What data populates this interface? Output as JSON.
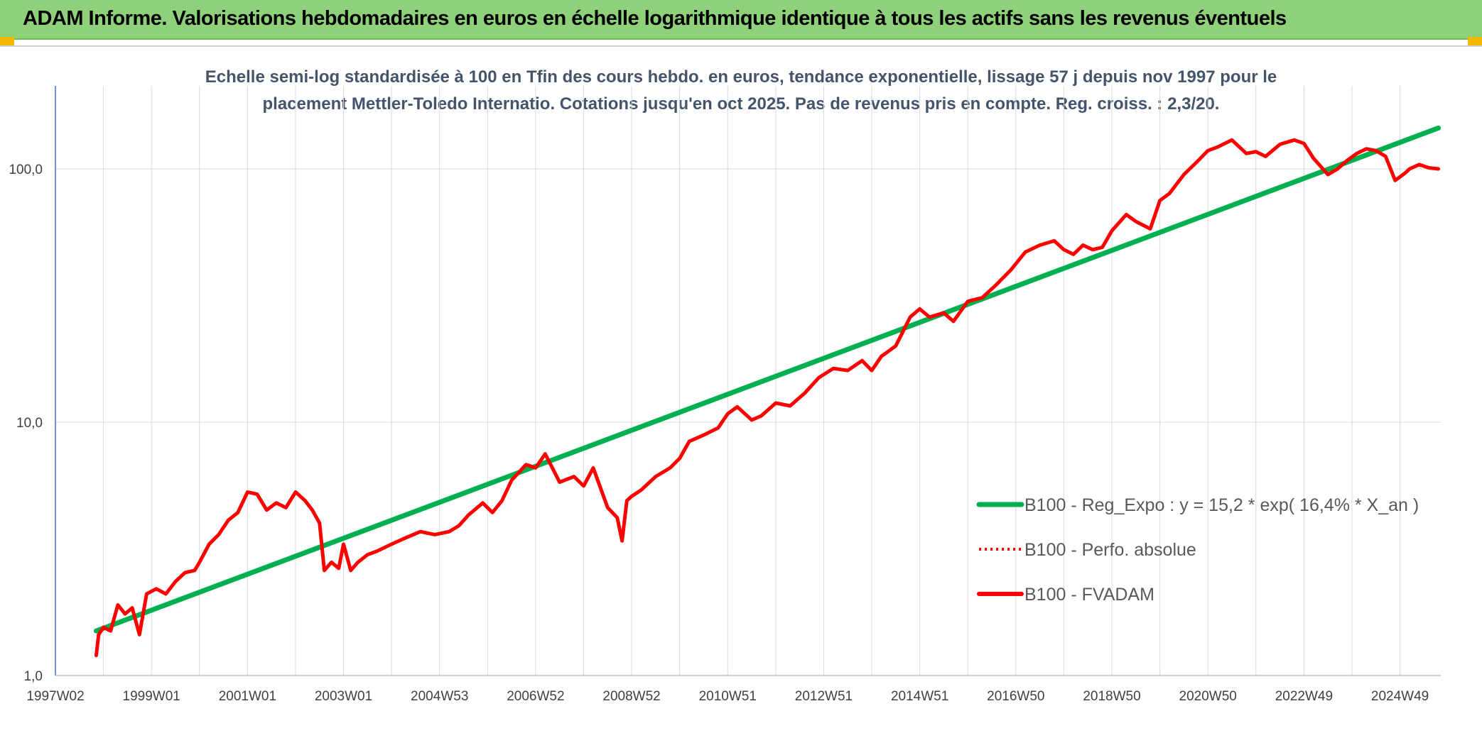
{
  "header": {
    "title": "ADAM Informe. Valorisations hebdomadaires en euros en échelle logarithmique identique à tous les actifs sans les revenus éventuels"
  },
  "colors": {
    "banner": "#8fd17a",
    "regression": "#00b050",
    "performance": "#ff0000",
    "grid": "#d9d9d9"
  },
  "chart_data": {
    "type": "line",
    "title_lines": [
      "Echelle semi-log standardisée à 100 en Tfin des cours hebdo. en euros, tendance exponentielle, lissage 57 j depuis nov 1997 pour le",
      "placement Mettler-Toledo Internatio. Cotations jusqu'en oct 2025. Pas de revenus pris en compte. Reg. croiss. : 2,3/20."
    ],
    "y_scale": "log",
    "ylim": [
      1,
      180
    ],
    "y_ticks": [
      {
        "value": 1,
        "label": "1,0"
      },
      {
        "value": 10,
        "label": "10,0"
      },
      {
        "value": 100,
        "label": "100,0"
      }
    ],
    "xlim": [
      1997.0,
      2025.85
    ],
    "x_ticks": [
      {
        "value": 1997.0,
        "label": "1997W02"
      },
      {
        "value": 1999.0,
        "label": "1999W01"
      },
      {
        "value": 2001.0,
        "label": "2001W01"
      },
      {
        "value": 2003.0,
        "label": "2003W01"
      },
      {
        "value": 2005.0,
        "label": "2004W53"
      },
      {
        "value": 2007.0,
        "label": "2006W52"
      },
      {
        "value": 2009.0,
        "label": "2008W52"
      },
      {
        "value": 2011.0,
        "label": "2010W51"
      },
      {
        "value": 2013.0,
        "label": "2012W51"
      },
      {
        "value": 2015.0,
        "label": "2014W51"
      },
      {
        "value": 2017.0,
        "label": "2016W50"
      },
      {
        "value": 2019.0,
        "label": "2018W50"
      },
      {
        "value": 2021.0,
        "label": "2020W50"
      },
      {
        "value": 2023.0,
        "label": "2022W49"
      },
      {
        "value": 2025.0,
        "label": "2024W49"
      }
    ],
    "grid": true,
    "legend_position": "bottom-right",
    "series": [
      {
        "name": "B100 - Reg_Expo : y = 15,2 * exp( 16,4% *  X_an )",
        "style": "solid-green",
        "x": [
          1997.85,
          2025.8
        ],
        "y": [
          1.5,
          145
        ]
      },
      {
        "name": "B100 - Perfo. absolue",
        "style": "dotted-red",
        "x": [],
        "y": []
      },
      {
        "name": "B100 - FVADAM",
        "style": "solid-red",
        "x": [
          1997.85,
          1997.9,
          1998.0,
          1998.15,
          1998.3,
          1998.45,
          1998.6,
          1998.75,
          1998.9,
          1999.0,
          1999.1,
          1999.3,
          1999.5,
          1999.7,
          1999.9,
          2000.0,
          2000.2,
          2000.4,
          2000.6,
          2000.8,
          2001.0,
          2001.2,
          2001.4,
          2001.6,
          2001.8,
          2002.0,
          2002.2,
          2002.35,
          2002.5,
          2002.6,
          2002.75,
          2002.9,
          2003.0,
          2003.15,
          2003.3,
          2003.5,
          2003.7,
          2004.0,
          2004.3,
          2004.6,
          2004.9,
          2005.2,
          2005.4,
          2005.6,
          2005.9,
          2006.1,
          2006.3,
          2006.5,
          2006.8,
          2007.0,
          2007.2,
          2007.5,
          2007.8,
          2008.0,
          2008.2,
          2008.5,
          2008.7,
          2008.8,
          2008.9,
          2009.0,
          2009.2,
          2009.5,
          2009.8,
          2010.0,
          2010.2,
          2010.5,
          2010.8,
          2011.0,
          2011.2,
          2011.5,
          2011.7,
          2012.0,
          2012.3,
          2012.6,
          2012.9,
          2013.2,
          2013.5,
          2013.8,
          2014.0,
          2014.2,
          2014.5,
          2014.8,
          2015.0,
          2015.2,
          2015.5,
          2015.7,
          2016.0,
          2016.3,
          2016.6,
          2016.9,
          2017.2,
          2017.5,
          2017.8,
          2018.0,
          2018.2,
          2018.4,
          2018.6,
          2018.8,
          2019.0,
          2019.3,
          2019.5,
          2019.8,
          2020.0,
          2020.2,
          2020.5,
          2020.8,
          2021.0,
          2021.2,
          2021.5,
          2021.8,
          2022.0,
          2022.2,
          2022.5,
          2022.8,
          2023.0,
          2023.2,
          2023.5,
          2023.7,
          2023.9,
          2024.1,
          2024.3,
          2024.5,
          2024.7,
          2024.9,
          2025.1,
          2025.2,
          2025.4,
          2025.6,
          2025.8
        ],
        "y": [
          1.2,
          1.45,
          1.55,
          1.5,
          1.9,
          1.75,
          1.85,
          1.45,
          2.1,
          2.15,
          2.2,
          2.1,
          2.35,
          2.55,
          2.6,
          2.8,
          3.3,
          3.6,
          4.1,
          4.4,
          5.3,
          5.2,
          4.5,
          4.8,
          4.6,
          5.3,
          4.9,
          4.5,
          4.0,
          2.6,
          2.8,
          2.65,
          3.3,
          2.6,
          2.8,
          3.0,
          3.1,
          3.3,
          3.5,
          3.7,
          3.6,
          3.7,
          3.9,
          4.3,
          4.8,
          4.4,
          4.9,
          5.9,
          6.8,
          6.6,
          7.5,
          5.8,
          6.1,
          5.6,
          6.6,
          4.6,
          4.2,
          3.4,
          4.9,
          5.1,
          5.4,
          6.1,
          6.6,
          7.2,
          8.4,
          8.9,
          9.5,
          10.8,
          11.5,
          10.2,
          10.6,
          11.9,
          11.6,
          13.0,
          15.0,
          16.3,
          16.0,
          17.5,
          16.0,
          18.2,
          20.0,
          26.0,
          28.0,
          26.0,
          27.0,
          25.0,
          30.0,
          31.0,
          35.0,
          40.0,
          47.0,
          50.0,
          52.0,
          48.0,
          46.0,
          50.0,
          48.0,
          49.0,
          57.0,
          66.0,
          62.0,
          58.0,
          75.0,
          80.0,
          95.0,
          108.0,
          118.0,
          122.0,
          130.0,
          115.0,
          117.0,
          112.0,
          125.0,
          130.0,
          126.0,
          110.0,
          95.0,
          100.0,
          108.0,
          115.0,
          120.0,
          118.0,
          112.0,
          90.0,
          96.0,
          100.0,
          104.0,
          101.0,
          100.0
        ]
      }
    ]
  }
}
